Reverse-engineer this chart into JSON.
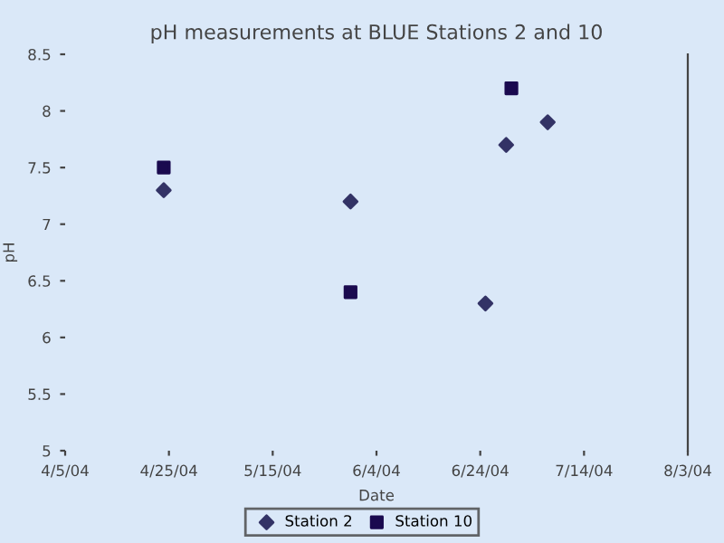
{
  "chart_data": {
    "type": "scatter",
    "title": "pH measurements at BLUE Stations 2 and 10",
    "xlabel": "Date",
    "ylabel": "pH",
    "series": [
      {
        "name": "Station 2",
        "color": "#333366",
        "marker": "diamond",
        "x": [
          "2004-04-24",
          "2004-05-30",
          "2004-06-25",
          "2004-06-29",
          "2004-07-07"
        ],
        "values": [
          7.3,
          7.2,
          6.3,
          7.7,
          7.9
        ]
      },
      {
        "name": "Station 10",
        "color": "#1a0a4f",
        "marker": "square",
        "x": [
          "2004-04-24",
          "2004-05-30",
          "2004-06-30"
        ],
        "values": [
          7.5,
          6.4,
          8.2
        ]
      }
    ],
    "xlim": [
      "2004-04-05",
      "2004-08-03"
    ],
    "xticks": [
      {
        "value": "2004-04-05",
        "label": "4/5/04"
      },
      {
        "value": "2004-04-25",
        "label": "4/25/04"
      },
      {
        "value": "2004-05-15",
        "label": "5/15/04"
      },
      {
        "value": "2004-06-04",
        "label": "6/4/04"
      },
      {
        "value": "2004-06-24",
        "label": "6/24/04"
      },
      {
        "value": "2004-07-14",
        "label": "7/14/04"
      },
      {
        "value": "2004-08-03",
        "label": "8/3/04"
      }
    ],
    "ylim": [
      5,
      8.5
    ],
    "yticks": [
      5,
      5.5,
      6,
      6.5,
      7,
      7.5,
      8,
      8.5
    ],
    "grid": false,
    "legend": "bottom"
  }
}
